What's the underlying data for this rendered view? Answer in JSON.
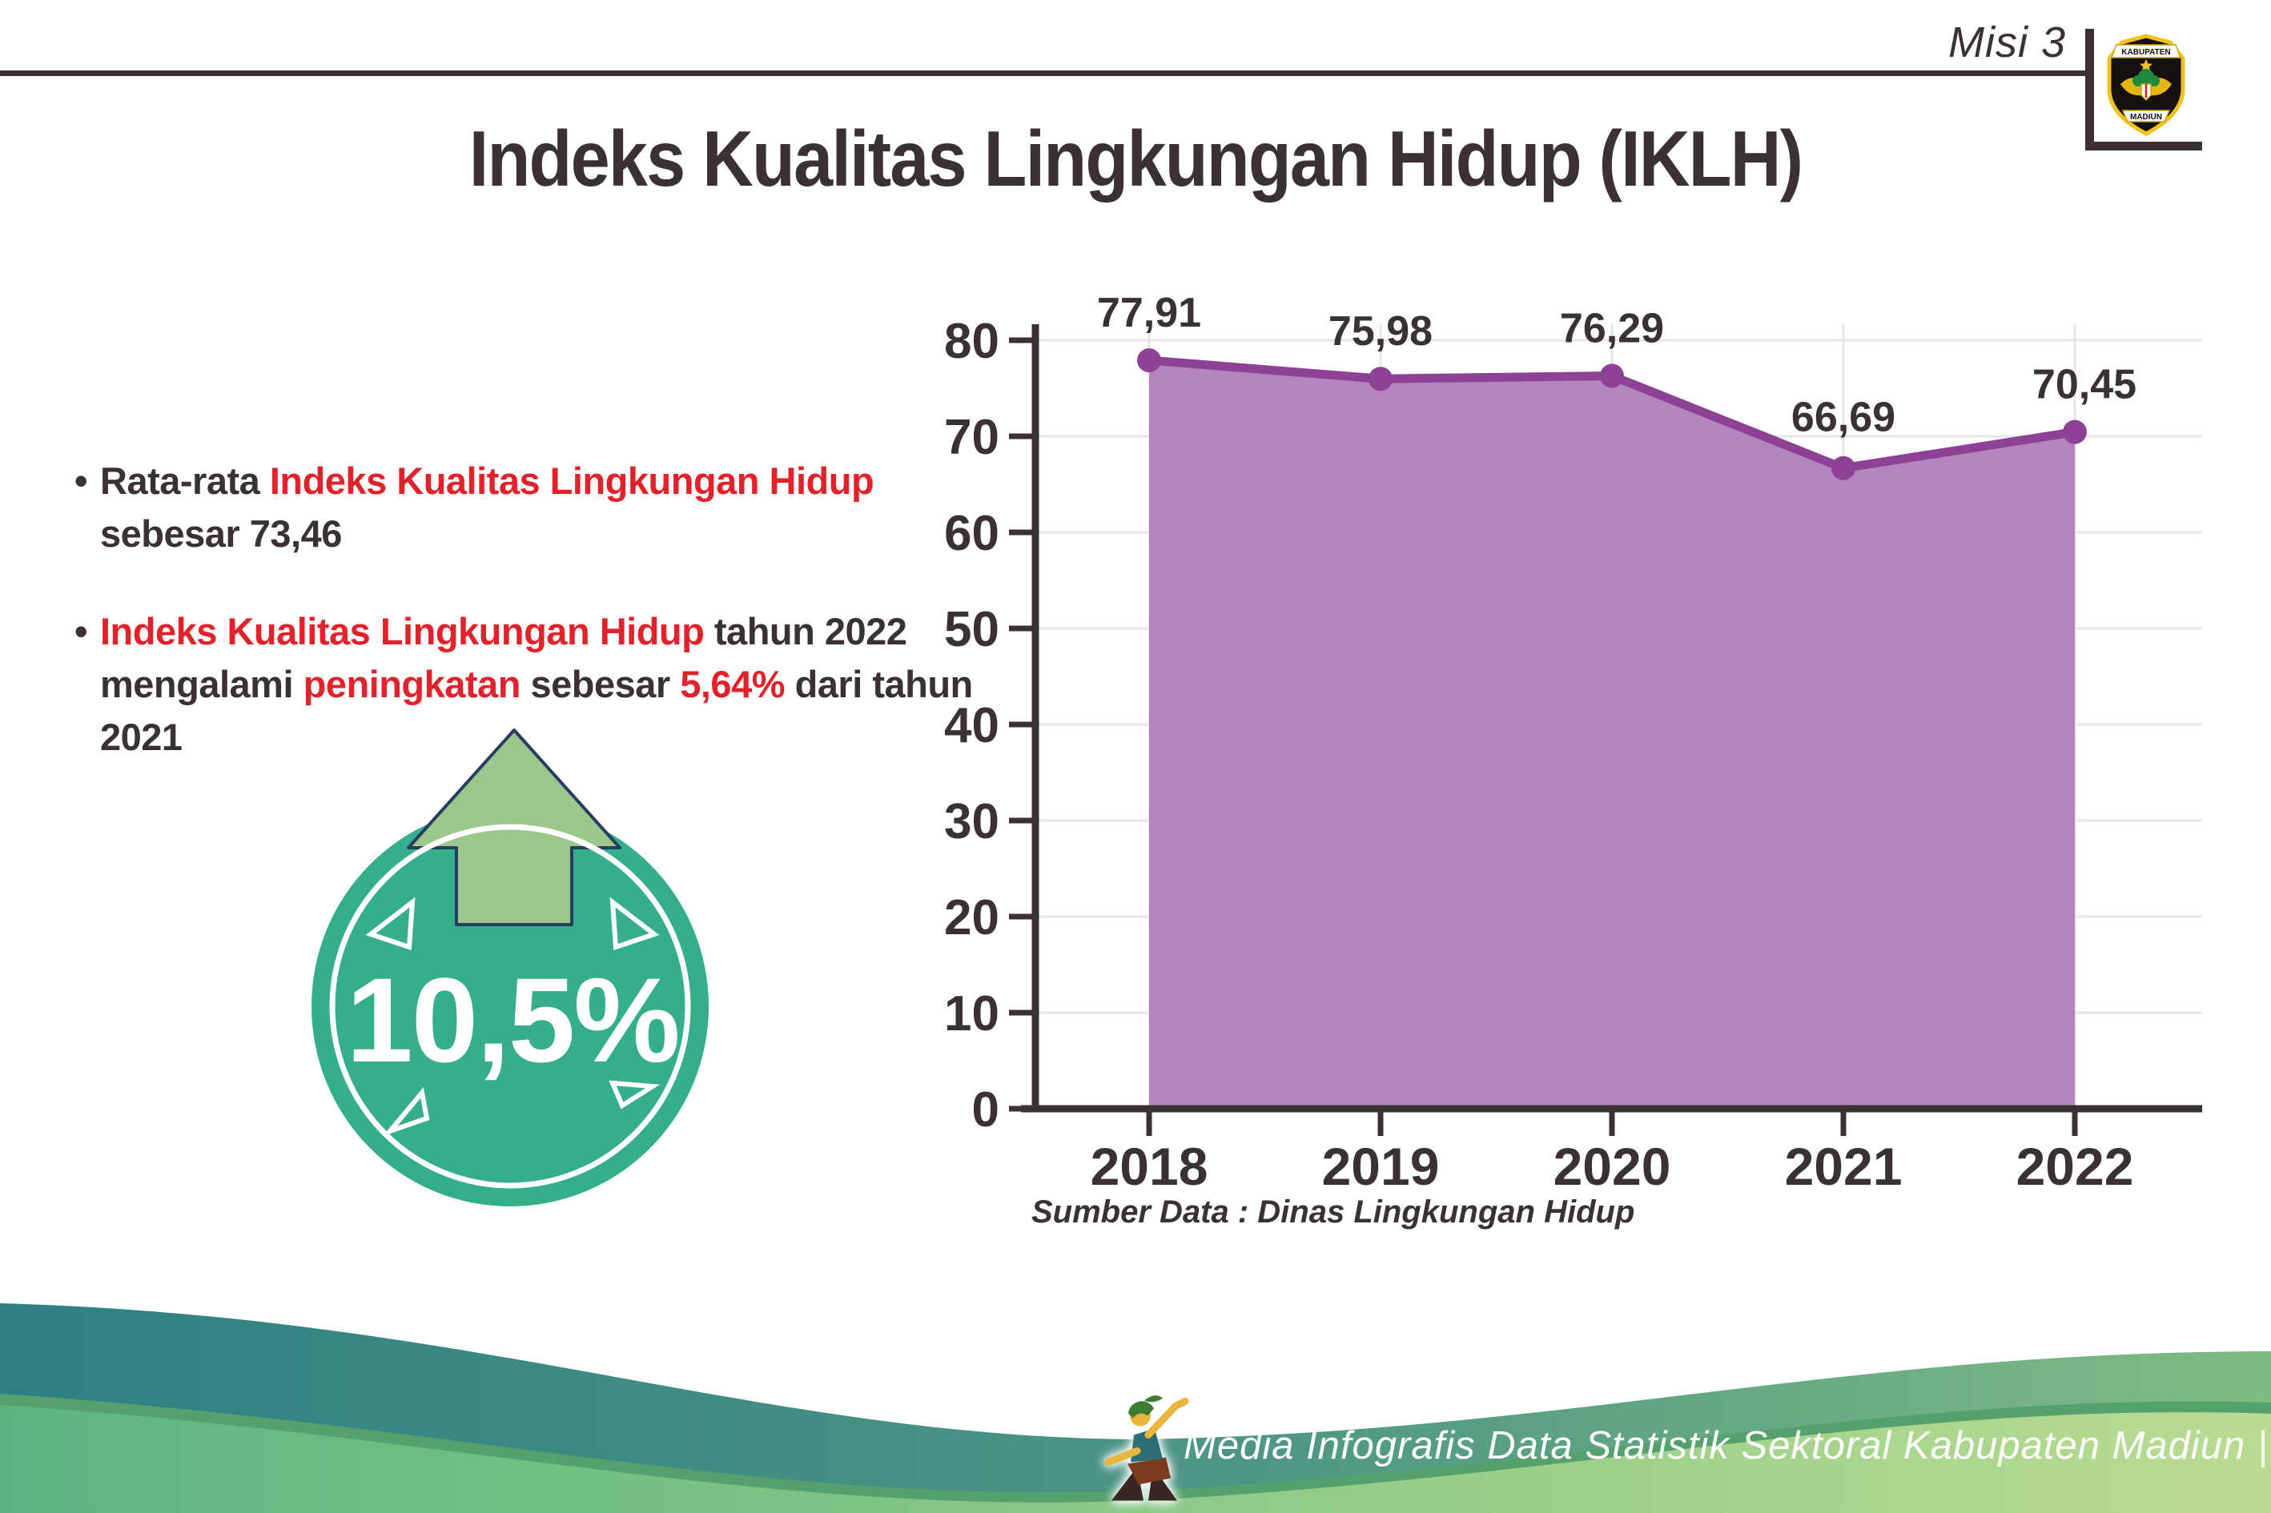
{
  "header": {
    "mission_label": "Misi 3",
    "logo": {
      "top_text": "KABUPATEN",
      "bottom_text": "MADIUN"
    }
  },
  "title": "Indeks Kualitas Lingkungan Hidup (IKLH)",
  "bullets": [
    {
      "marker": "•",
      "segments": [
        {
          "text": "Rata-rata ",
          "color": "dark"
        },
        {
          "text": "Indeks Kualitas Lingkungan Hidup",
          "color": "red"
        },
        {
          "text": " sebesar 73,46",
          "color": "dark"
        }
      ]
    },
    {
      "marker": "•",
      "segments": [
        {
          "text": "Indeks Kualitas Lingkungan Hidup",
          "color": "red"
        },
        {
          "text": " tahun 2022 mengalami ",
          "color": "dark"
        },
        {
          "text": "peningkatan",
          "color": "red"
        },
        {
          "text": " sebesar ",
          "color": "dark"
        },
        {
          "text": "5,64%",
          "color": "red"
        },
        {
          "text": " dari tahun 2021",
          "color": "dark"
        }
      ]
    }
  ],
  "badge": {
    "value": "10,5%",
    "direction": "up"
  },
  "chart_data": {
    "type": "area",
    "title": "",
    "categories": [
      "2018",
      "2019",
      "2020",
      "2021",
      "2022"
    ],
    "values": [
      77.91,
      75.98,
      76.29,
      66.69,
      70.45
    ],
    "value_labels": [
      "77,91",
      "75,98",
      "76,29",
      "66,69",
      "70,45"
    ],
    "y_ticks": [
      0,
      10,
      20,
      30,
      40,
      50,
      60,
      70,
      80
    ],
    "ylim": [
      0,
      85
    ],
    "grid": true,
    "legend": "none",
    "fill_color": "#b484bf",
    "line_color": "#8d4295",
    "axis_color": "#3a3132",
    "source_note": "Sumber Data : Dinas Lingkungan Hidup"
  },
  "footer": {
    "credit": "Media Infografis Data Statistik Sektoral Kabupaten Madiun |"
  },
  "colors": {
    "text_dark": "#3a3132",
    "accent_red": "#e2222b",
    "badge_teal": "#35ae8c",
    "arrow_green": "#9cc78a",
    "wave_teal": "#2e8084",
    "wave_light_green": "#5cb57f"
  }
}
